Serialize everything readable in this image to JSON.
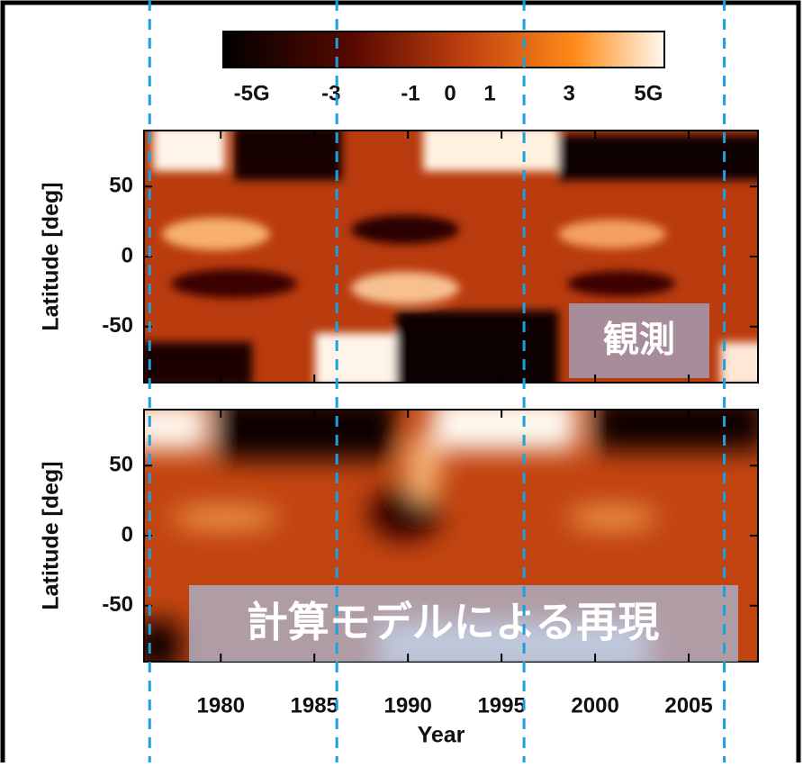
{
  "chart_data": {
    "type": "heatmap",
    "xlabel": "Year",
    "ylabel": "Latitude [deg]",
    "xlim": [
      1975.9,
      2008.7
    ],
    "xticks": [
      1980,
      1985,
      1990,
      1995,
      2000,
      2005
    ],
    "ylim": [
      -90,
      90
    ],
    "yticks": [
      50,
      0,
      -50
    ],
    "clim": [
      -5.4,
      5.4
    ],
    "cticks": [
      {
        "value": -5,
        "label": "-5G"
      },
      -3,
      -1,
      0,
      1,
      3,
      {
        "value": 5,
        "label": "5G"
      }
    ],
    "vlines": [
      1976.2,
      1986.2,
      1996.2,
      2006.9
    ],
    "vline_color": "#1ca0e0",
    "panels": [
      {
        "annotation": "観測"
      },
      {
        "annotation": "計算モデルによる再現"
      }
    ]
  }
}
